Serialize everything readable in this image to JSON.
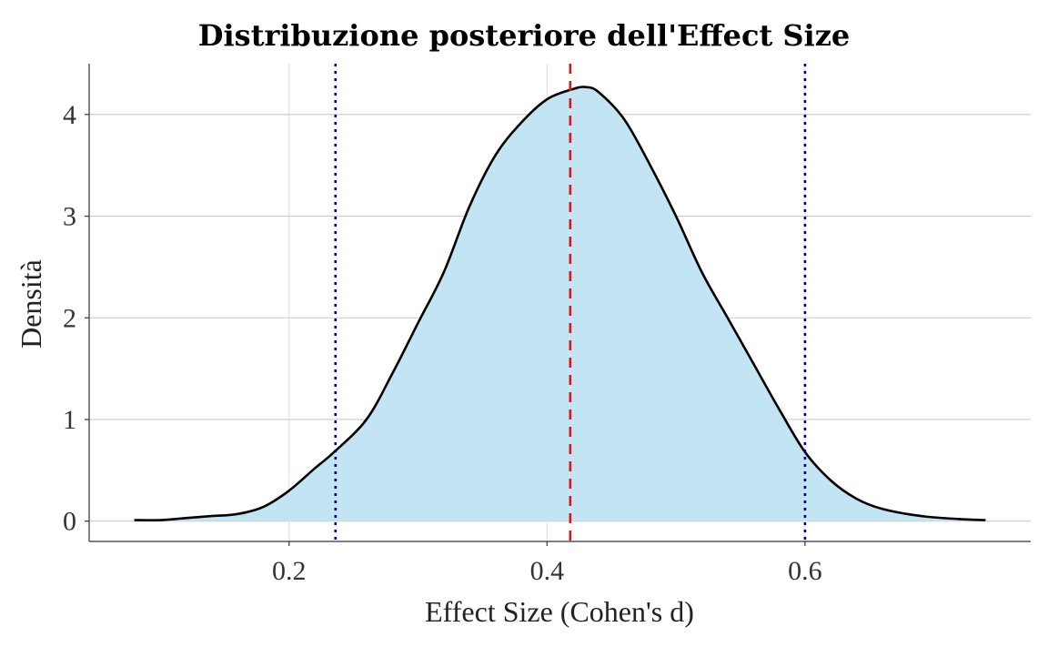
{
  "chart_data": {
    "type": "area",
    "title": "Distribuzione posteriore dell'Effect Size",
    "xlabel": "Effect Size (Cohen's d)",
    "ylabel": "Densità",
    "xlim": [
      0.045,
      0.775
    ],
    "ylim": [
      -0.2,
      4.5
    ],
    "x_ticks": [
      0.2,
      0.4,
      0.6
    ],
    "x_tick_labels": [
      "0.2",
      "0.4",
      "0.6"
    ],
    "y_ticks": [
      0,
      1,
      2,
      3,
      4
    ],
    "y_tick_labels": [
      "0",
      "1",
      "2",
      "3",
      "4"
    ],
    "grid": true,
    "density_curve": {
      "x": [
        0.08,
        0.1,
        0.12,
        0.14,
        0.16,
        0.18,
        0.2,
        0.22,
        0.235,
        0.26,
        0.28,
        0.3,
        0.32,
        0.34,
        0.36,
        0.38,
        0.4,
        0.42,
        0.43,
        0.44,
        0.46,
        0.48,
        0.5,
        0.52,
        0.54,
        0.56,
        0.58,
        0.6,
        0.62,
        0.64,
        0.66,
        0.69,
        0.72,
        0.74
      ],
      "y": [
        0.01,
        0.01,
        0.03,
        0.05,
        0.07,
        0.14,
        0.3,
        0.52,
        0.68,
        1.0,
        1.45,
        1.95,
        2.45,
        3.1,
        3.6,
        3.92,
        4.15,
        4.25,
        4.27,
        4.22,
        3.95,
        3.5,
        3.0,
        2.45,
        2.0,
        1.55,
        1.1,
        0.68,
        0.4,
        0.22,
        0.12,
        0.05,
        0.02,
        0.01
      ],
      "fill_color": "#c2e4f3",
      "line_color": "#000000"
    },
    "reference_lines": [
      {
        "x": 0.418,
        "style": "dashed",
        "color": "#e0151b"
      },
      {
        "x": 0.236,
        "style": "dotted",
        "color": "#00008b"
      },
      {
        "x": 0.6,
        "style": "dotted",
        "color": "#00008b"
      }
    ]
  }
}
